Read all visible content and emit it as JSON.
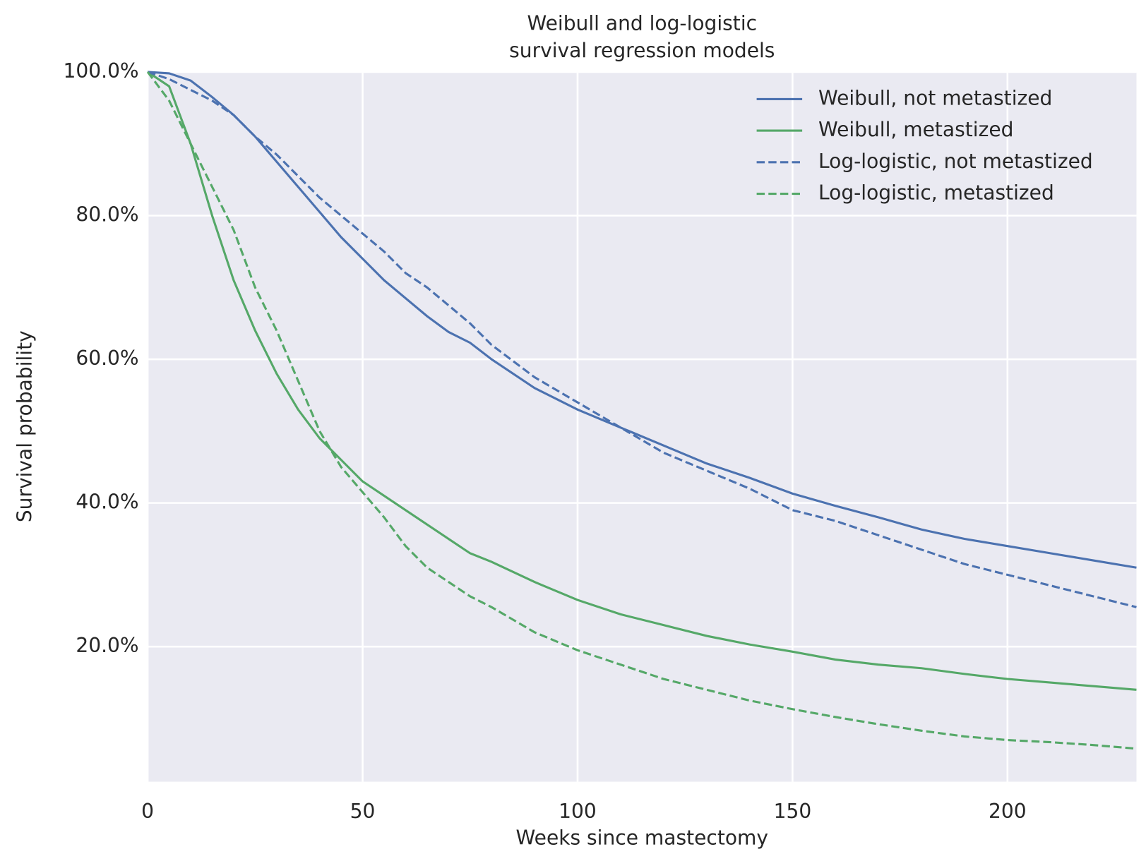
{
  "chart_data": {
    "type": "line",
    "title": [
      "Weibull and log-logistic",
      "survival regression models"
    ],
    "x_label": "Weeks since mastectomy",
    "y_label": "Survival probability",
    "x": [
      0,
      5,
      10,
      15,
      20,
      25,
      30,
      35,
      40,
      45,
      50,
      55,
      60,
      65,
      70,
      75,
      80,
      90,
      100,
      110,
      120,
      130,
      140,
      150,
      160,
      170,
      180,
      190,
      200,
      210,
      220,
      230
    ],
    "series": [
      {
        "name": "Weibull, not metastized",
        "color": "#4c72b0",
        "dashed": false,
        "values": [
          100,
          99.8,
          98.8,
          96.5,
          94,
          91,
          87.5,
          84,
          80.5,
          77,
          74,
          71,
          68.5,
          66,
          63.8,
          62.3,
          60,
          56,
          53,
          50.5,
          48,
          45.5,
          43.5,
          41.3,
          39.6,
          38,
          36.3,
          35,
          34,
          33,
          32,
          31
        ]
      },
      {
        "name": "Weibull, metastized",
        "color": "#55a868",
        "dashed": false,
        "values": [
          100,
          98,
          90,
          80,
          71,
          64,
          58,
          53,
          49,
          46,
          43,
          41,
          39,
          37,
          35,
          33,
          31.8,
          29,
          26.5,
          24.5,
          23,
          21.5,
          20.3,
          19.3,
          18.2,
          17.5,
          17,
          16.2,
          15.5,
          15,
          14.5,
          14
        ]
      },
      {
        "name": "Log-logistic, not metastized",
        "color": "#4c72b0",
        "dashed": true,
        "values": [
          100,
          99,
          97.5,
          96,
          94,
          91,
          88.5,
          85.5,
          82.5,
          80,
          77.5,
          75,
          72,
          70,
          67.5,
          65,
          62,
          57.5,
          54,
          50.5,
          47,
          44.5,
          42,
          39,
          37.5,
          35.5,
          33.5,
          31.5,
          30,
          28.5,
          27,
          25.5
        ]
      },
      {
        "name": "Log-logistic, metastized",
        "color": "#55a868",
        "dashed": true,
        "values": [
          100,
          96,
          90,
          84,
          78,
          70,
          64,
          57,
          50,
          45,
          41.5,
          38,
          34,
          31,
          29,
          27,
          25.5,
          22,
          19.5,
          17.5,
          15.5,
          14,
          12.5,
          11.3,
          10.2,
          9.2,
          8.3,
          7.5,
          7,
          6.7,
          6.3,
          5.8
        ]
      }
    ],
    "xlim": [
      0,
      230
    ],
    "ylim": [
      1.2,
      100
    ],
    "xticks": [
      0,
      50,
      100,
      150,
      200
    ],
    "yticks": [
      {
        "value": 20,
        "label": "20.0%"
      },
      {
        "value": 40,
        "label": "40.0%"
      },
      {
        "value": 60,
        "label": "60.0%"
      },
      {
        "value": 80,
        "label": "80.0%"
      },
      {
        "value": 100,
        "label": "100.0%"
      }
    ],
    "grid": true,
    "legend": "upper right"
  }
}
